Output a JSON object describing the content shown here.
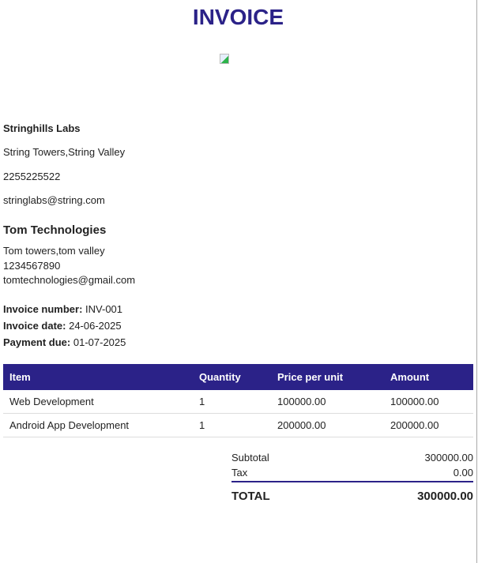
{
  "title": "INVOICE",
  "sender": {
    "name": "Stringhills Labs",
    "address": "String Towers,String Valley",
    "phone": "2255225522",
    "email": "stringlabs@string.com"
  },
  "client": {
    "name": "Tom Technologies",
    "address": "Tom towers,tom valley",
    "phone": "1234567890",
    "email": "tomtechnologies@gmail.com"
  },
  "meta": {
    "number_label": "Invoice number:",
    "number": "INV-001",
    "date_label": "Invoice date:",
    "date": "24-06-2025",
    "due_label": "Payment due:",
    "due": "01-07-2025"
  },
  "table": {
    "headers": [
      "Item",
      "Quantity",
      "Price per unit",
      "Amount"
    ],
    "rows": [
      [
        "Web Development",
        "1",
        "100000.00",
        "100000.00"
      ],
      [
        "Android App Development",
        "1",
        "200000.00",
        "200000.00"
      ]
    ]
  },
  "totals": {
    "subtotal_label": "Subtotal",
    "subtotal": "300000.00",
    "tax_label": "Tax",
    "tax": "0.00",
    "total_label": "TOTAL",
    "total": "300000.00"
  },
  "colors": {
    "accent": "#2b2288"
  }
}
